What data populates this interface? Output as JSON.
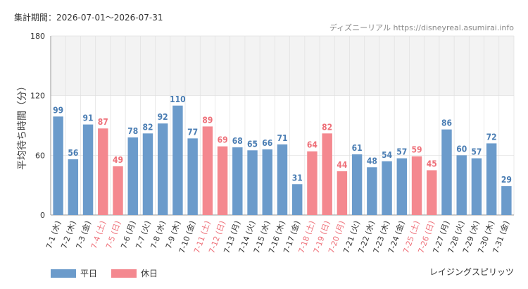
{
  "period_label": "集計期間：2026-07-01～2026-07-31",
  "source_label": "ディズニーリアル https://disneyreal.asumirai.info",
  "subtitle": "レイジングスピリッツ",
  "colors": {
    "weekday": "#6b9bcb",
    "holiday": "#f4888f",
    "weekday_text": "#4a7db3",
    "holiday_text": "#ee6f78",
    "highlight_band": "#f3f3f3",
    "grid": "#e0e0e0"
  },
  "chart_data": {
    "type": "bar",
    "ylabel": "平均待ち時間（分）",
    "ylim": [
      0,
      180
    ],
    "yticks": [
      0,
      60,
      120,
      180
    ],
    "highlight_band": [
      120,
      180
    ],
    "grid": true,
    "legend_position": "bottom-left",
    "legend": [
      {
        "key": "weekday",
        "label": "平日"
      },
      {
        "key": "holiday",
        "label": "休日"
      }
    ],
    "categories": [
      "7-1 (水)",
      "7-2 (木)",
      "7-3 (金)",
      "7-4 (土)",
      "7-5 (日)",
      "7-6 (月)",
      "7-7 (火)",
      "7-8 (水)",
      "7-9 (木)",
      "7-10 (金)",
      "7-11 (土)",
      "7-12 (日)",
      "7-13 (月)",
      "7-14 (火)",
      "7-15 (水)",
      "7-16 (木)",
      "7-17 (金)",
      "7-18 (土)",
      "7-19 (日)",
      "7-20 (月)",
      "7-21 (火)",
      "7-22 (水)",
      "7-23 (木)",
      "7-24 (金)",
      "7-25 (土)",
      "7-26 (日)",
      "7-27 (月)",
      "7-28 (火)",
      "7-29 (水)",
      "7-30 (木)",
      "7-31 (金)"
    ],
    "values": [
      99,
      56,
      91,
      87,
      49,
      78,
      82,
      92,
      110,
      77,
      89,
      69,
      68,
      65,
      66,
      71,
      31,
      64,
      82,
      44,
      61,
      48,
      54,
      57,
      59,
      45,
      86,
      60,
      57,
      72,
      29
    ],
    "day_types": [
      "weekday",
      "weekday",
      "weekday",
      "holiday",
      "holiday",
      "weekday",
      "weekday",
      "weekday",
      "weekday",
      "weekday",
      "holiday",
      "holiday",
      "weekday",
      "weekday",
      "weekday",
      "weekday",
      "weekday",
      "holiday",
      "holiday",
      "holiday",
      "weekday",
      "weekday",
      "weekday",
      "weekday",
      "holiday",
      "holiday",
      "weekday",
      "weekday",
      "weekday",
      "weekday",
      "weekday"
    ]
  }
}
